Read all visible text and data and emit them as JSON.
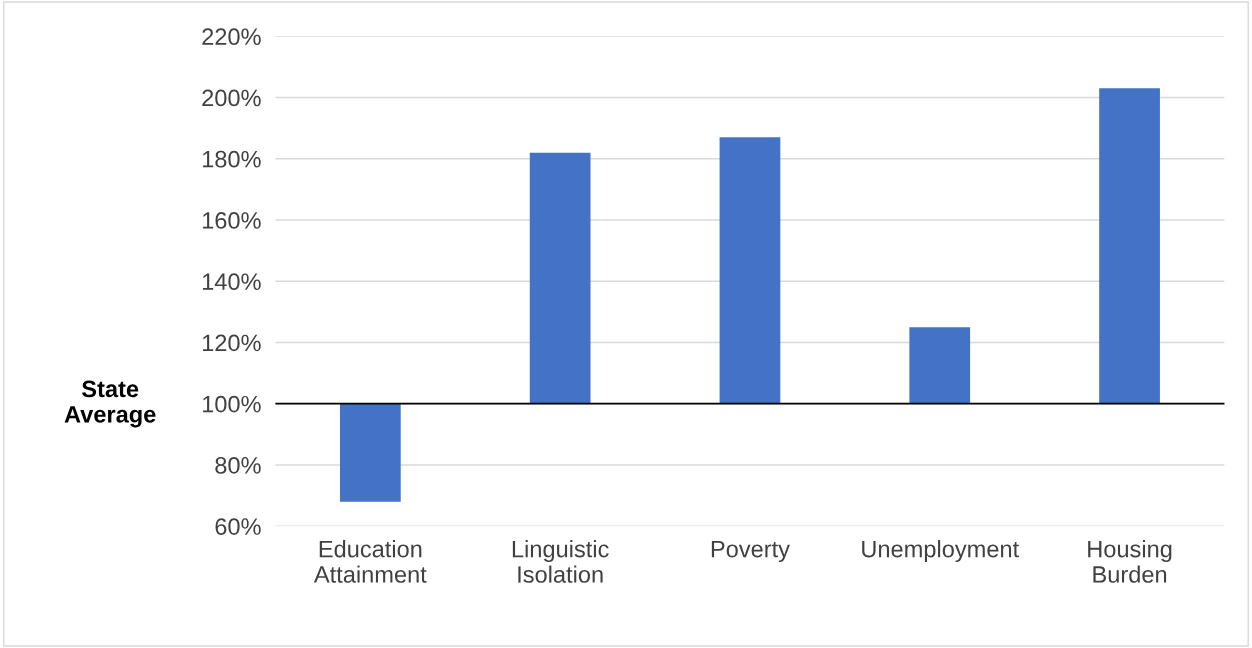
{
  "chart_data": {
    "type": "bar",
    "categories": [
      "Education Attainment",
      "Linguistic Isolation",
      "Poverty",
      "Unemployment",
      "Housing Burden"
    ],
    "base": [
      100,
      100,
      100,
      100,
      100
    ],
    "values": [
      -32,
      82,
      87,
      25,
      103
    ],
    "color": "#4472c4",
    "ylim": [
      60,
      220
    ],
    "yticks": [
      {
        "value": 60,
        "label": "60%"
      },
      {
        "value": 80,
        "label": "80%"
      },
      {
        "value": 100,
        "label": "100%"
      },
      {
        "value": 120,
        "label": "120%"
      },
      {
        "value": 140,
        "label": "140%"
      },
      {
        "value": 160,
        "label": "160%"
      },
      {
        "value": 180,
        "label": "180%"
      },
      {
        "value": 200,
        "label": "200%"
      },
      {
        "value": 220,
        "label": "220%"
      }
    ],
    "ref_lines": [
      {
        "axis": "y",
        "value": 100,
        "label": "State Average",
        "color": "#000000"
      }
    ],
    "grid": "y"
  }
}
